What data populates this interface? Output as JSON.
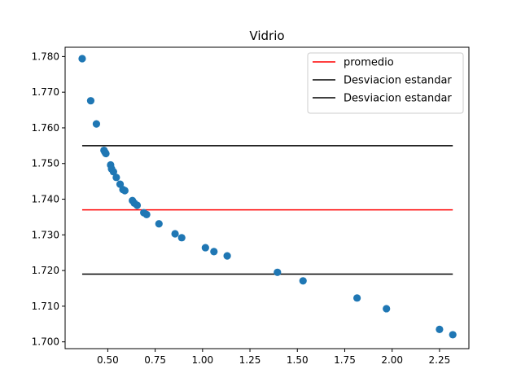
{
  "chart_data": {
    "type": "scatter",
    "title": "Vidrio",
    "xlabel": "",
    "ylabel": "",
    "xlim": [
      0.275,
      2.405
    ],
    "ylim": [
      1.6981,
      1.7826
    ],
    "xticks": [
      "0.50",
      "0.75",
      "1.00",
      "1.25",
      "1.50",
      "1.75",
      "2.00",
      "2.25"
    ],
    "xtick_values": [
      0.5,
      0.75,
      1.0,
      1.25,
      1.5,
      1.75,
      2.0,
      2.25
    ],
    "yticks": [
      "1.700",
      "1.710",
      "1.720",
      "1.730",
      "1.740",
      "1.750",
      "1.760",
      "1.770",
      "1.780"
    ],
    "ytick_values": [
      1.7,
      1.71,
      1.72,
      1.73,
      1.74,
      1.75,
      1.76,
      1.77,
      1.78
    ],
    "grid": false,
    "legend_position": "top-right",
    "points": {
      "color": "#1f77b4",
      "x": [
        0.365,
        0.41,
        0.44,
        0.48,
        0.485,
        0.49,
        0.515,
        0.52,
        0.53,
        0.545,
        0.565,
        0.58,
        0.59,
        0.63,
        0.64,
        0.655,
        0.69,
        0.705,
        0.77,
        0.855,
        0.89,
        1.015,
        1.06,
        1.13,
        1.395,
        1.53,
        1.815,
        1.97,
        2.25,
        2.32
      ],
      "y": [
        1.7794,
        1.7676,
        1.7611,
        1.7537,
        1.7532,
        1.7528,
        1.7496,
        1.7485,
        1.7477,
        1.7461,
        1.7442,
        1.7427,
        1.7424,
        1.7396,
        1.7389,
        1.7383,
        1.7362,
        1.7357,
        1.7331,
        1.7303,
        1.7292,
        1.7264,
        1.7253,
        1.7241,
        1.7195,
        1.7171,
        1.7123,
        1.7093,
        1.7035,
        1.702
      ]
    },
    "lines": [
      {
        "name": "promedio",
        "y": 1.737,
        "x_start": 0.365,
        "x_end": 2.32,
        "color": "#ff0000"
      },
      {
        "name": "Desviacion estandar",
        "y": 1.755,
        "x_start": 0.365,
        "x_end": 2.32,
        "color": "#000000"
      },
      {
        "name": "Desviacion estandar",
        "y": 1.719,
        "x_start": 0.365,
        "x_end": 2.32,
        "color": "#000000"
      }
    ]
  }
}
